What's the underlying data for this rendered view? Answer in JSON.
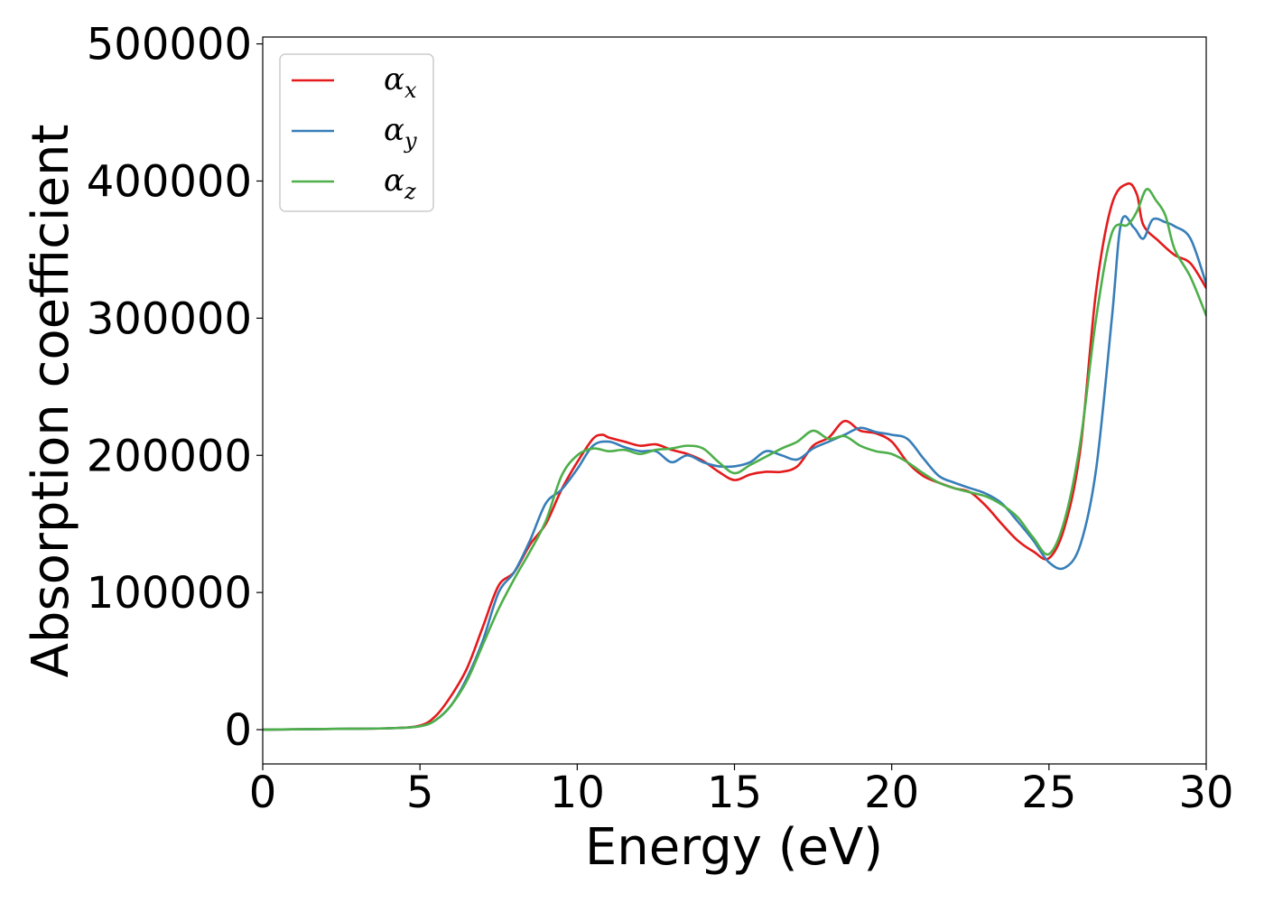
{
  "chart_data": {
    "type": "line",
    "xlabel": "Energy (eV)",
    "ylabel": "Absorption coefficient",
    "xlim": [
      0,
      30
    ],
    "ylim": [
      -25000,
      505000
    ],
    "xticks": [
      0,
      5,
      10,
      15,
      20,
      25,
      30
    ],
    "xtick_labels": [
      "0",
      "5",
      "10",
      "15",
      "20",
      "25",
      "30"
    ],
    "yticks": [
      0,
      100000,
      200000,
      300000,
      400000,
      500000
    ],
    "ytick_labels": [
      "0",
      "100000",
      "200000",
      "300000",
      "400000",
      "500000"
    ],
    "grid": false,
    "legend": "upper-left",
    "series": [
      {
        "name": "αx",
        "symbol": "α",
        "subscript": "x",
        "color": "#e41a1c",
        "x": [
          0,
          2,
          4,
          5,
          5.5,
          6,
          6.5,
          7,
          7.5,
          8,
          8.5,
          9,
          9.5,
          10,
          10.5,
          10.8,
          11,
          11.5,
          12,
          12.5,
          13,
          13.5,
          14,
          14.5,
          15,
          15.5,
          16,
          16.5,
          17,
          17.5,
          18,
          18.5,
          19,
          19.5,
          20,
          20.5,
          21,
          21.5,
          22,
          22.5,
          23,
          23.5,
          24,
          24.5,
          25,
          25.5,
          26,
          26.5,
          27,
          27.5,
          27.8,
          28,
          28.5,
          29,
          29.5,
          30
        ],
        "y": [
          0,
          500,
          1000,
          3000,
          10000,
          25000,
          45000,
          75000,
          105000,
          115000,
          135000,
          150000,
          175000,
          195000,
          212000,
          215000,
          213000,
          210000,
          207000,
          208000,
          204000,
          201000,
          196000,
          188000,
          182000,
          186000,
          188000,
          188000,
          192000,
          207000,
          213000,
          225000,
          218000,
          216000,
          210000,
          195000,
          185000,
          180000,
          176000,
          173000,
          163000,
          150000,
          138000,
          130000,
          125000,
          148000,
          205000,
          320000,
          383000,
          398000,
          390000,
          368000,
          356000,
          346000,
          340000,
          322000
        ]
      },
      {
        "name": "αy",
        "symbol": "α",
        "subscript": "y",
        "color": "#377eb8",
        "x": [
          0,
          2,
          4,
          5,
          5.5,
          6,
          6.5,
          7,
          7.5,
          8,
          8.5,
          9,
          9.5,
          10,
          10.5,
          11,
          11.5,
          12,
          12.5,
          13,
          13.5,
          14,
          14.5,
          15,
          15.5,
          16,
          16.5,
          17,
          17.5,
          18,
          18.5,
          19,
          19.5,
          20,
          20.5,
          21,
          21.5,
          22,
          22.5,
          23,
          23.5,
          24,
          24.5,
          25,
          25.5,
          26,
          26.5,
          27,
          27.3,
          27.7,
          28,
          28.3,
          28.7,
          29,
          29.5,
          30
        ],
        "y": [
          0,
          500,
          1000,
          2500,
          7000,
          18000,
          38000,
          65000,
          100000,
          115000,
          138000,
          165000,
          175000,
          190000,
          207000,
          210000,
          206000,
          203000,
          203000,
          195000,
          200000,
          195000,
          192000,
          192000,
          195000,
          203000,
          200000,
          197000,
          205000,
          210000,
          215000,
          220000,
          217000,
          215000,
          212000,
          198000,
          185000,
          180000,
          176000,
          172000,
          165000,
          152000,
          138000,
          122000,
          118000,
          135000,
          190000,
          300000,
          370000,
          366000,
          358000,
          372000,
          370000,
          367000,
          358000,
          325000
        ]
      },
      {
        "name": "αz",
        "symbol": "α",
        "subscript": "z",
        "color": "#4daf4a",
        "x": [
          0,
          2,
          4,
          5,
          5.5,
          6,
          6.5,
          7,
          7.5,
          8,
          8.5,
          9,
          9.5,
          10,
          10.5,
          11,
          11.5,
          12,
          12.5,
          13,
          13.5,
          14,
          14.5,
          15,
          15.5,
          16,
          16.5,
          17,
          17.5,
          18,
          18.5,
          19,
          19.5,
          20,
          20.5,
          21,
          21.5,
          22,
          22.5,
          23,
          23.5,
          24,
          24.5,
          25,
          25.5,
          26,
          26.5,
          27,
          27.5,
          27.8,
          28.1,
          28.4,
          28.7,
          29,
          29.5,
          30
        ],
        "y": [
          0,
          500,
          1000,
          2500,
          7000,
          18000,
          36000,
          62000,
          88000,
          110000,
          130000,
          152000,
          185000,
          200000,
          205000,
          203000,
          204000,
          201000,
          204000,
          205000,
          207000,
          205000,
          195000,
          187000,
          193000,
          199000,
          205000,
          210000,
          218000,
          212000,
          214000,
          207000,
          203000,
          201000,
          195000,
          187000,
          180000,
          176000,
          173000,
          170000,
          164000,
          155000,
          140000,
          128000,
          153000,
          210000,
          300000,
          362000,
          368000,
          378000,
          394000,
          386000,
          375000,
          350000,
          330000,
          302000
        ]
      }
    ]
  }
}
